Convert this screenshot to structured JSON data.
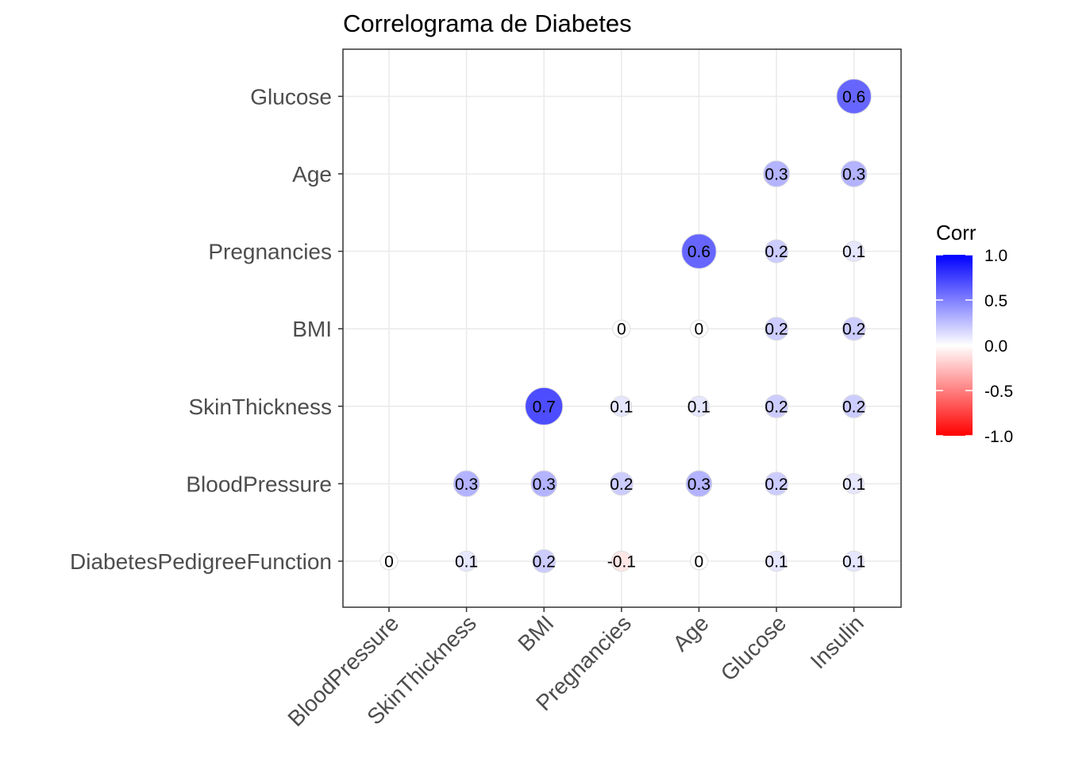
{
  "chart_data": {
    "type": "heatmap",
    "title": "Correlograma de Diabetes",
    "x_categories": [
      "BloodPressure",
      "SkinThickness",
      "BMI",
      "Pregnancies",
      "Age",
      "Glucose",
      "Insulin"
    ],
    "y_categories": [
      "DiabetesPedigreeFunction",
      "BloodPressure",
      "SkinThickness",
      "BMI",
      "Pregnancies",
      "Age",
      "Glucose"
    ],
    "cells": [
      {
        "x": "BloodPressure",
        "y": "DiabetesPedigreeFunction",
        "value": 0,
        "label": "0"
      },
      {
        "x": "SkinThickness",
        "y": "DiabetesPedigreeFunction",
        "value": 0.1,
        "label": "0.1"
      },
      {
        "x": "BMI",
        "y": "DiabetesPedigreeFunction",
        "value": 0.2,
        "label": "0.2"
      },
      {
        "x": "Pregnancies",
        "y": "DiabetesPedigreeFunction",
        "value": -0.1,
        "label": "-0.1"
      },
      {
        "x": "Age",
        "y": "DiabetesPedigreeFunction",
        "value": 0,
        "label": "0"
      },
      {
        "x": "Glucose",
        "y": "DiabetesPedigreeFunction",
        "value": 0.1,
        "label": "0.1"
      },
      {
        "x": "Insulin",
        "y": "DiabetesPedigreeFunction",
        "value": 0.1,
        "label": "0.1"
      },
      {
        "x": "SkinThickness",
        "y": "BloodPressure",
        "value": 0.3,
        "label": "0.3"
      },
      {
        "x": "BMI",
        "y": "BloodPressure",
        "value": 0.3,
        "label": "0.3"
      },
      {
        "x": "Pregnancies",
        "y": "BloodPressure",
        "value": 0.2,
        "label": "0.2"
      },
      {
        "x": "Age",
        "y": "BloodPressure",
        "value": 0.3,
        "label": "0.3"
      },
      {
        "x": "Glucose",
        "y": "BloodPressure",
        "value": 0.2,
        "label": "0.2"
      },
      {
        "x": "Insulin",
        "y": "BloodPressure",
        "value": 0.1,
        "label": "0.1"
      },
      {
        "x": "BMI",
        "y": "SkinThickness",
        "value": 0.7,
        "label": "0.7"
      },
      {
        "x": "Pregnancies",
        "y": "SkinThickness",
        "value": 0.1,
        "label": "0.1"
      },
      {
        "x": "Age",
        "y": "SkinThickness",
        "value": 0.1,
        "label": "0.1"
      },
      {
        "x": "Glucose",
        "y": "SkinThickness",
        "value": 0.2,
        "label": "0.2"
      },
      {
        "x": "Insulin",
        "y": "SkinThickness",
        "value": 0.2,
        "label": "0.2"
      },
      {
        "x": "Pregnancies",
        "y": "BMI",
        "value": 0,
        "label": "0"
      },
      {
        "x": "Age",
        "y": "BMI",
        "value": 0,
        "label": "0"
      },
      {
        "x": "Glucose",
        "y": "BMI",
        "value": 0.2,
        "label": "0.2"
      },
      {
        "x": "Insulin",
        "y": "BMI",
        "value": 0.2,
        "label": "0.2"
      },
      {
        "x": "Age",
        "y": "Pregnancies",
        "value": 0.6,
        "label": "0.6"
      },
      {
        "x": "Glucose",
        "y": "Pregnancies",
        "value": 0.2,
        "label": "0.2"
      },
      {
        "x": "Insulin",
        "y": "Pregnancies",
        "value": 0.1,
        "label": "0.1"
      },
      {
        "x": "Glucose",
        "y": "Age",
        "value": 0.3,
        "label": "0.3"
      },
      {
        "x": "Insulin",
        "y": "Age",
        "value": 0.3,
        "label": "0.3"
      },
      {
        "x": "Insulin",
        "y": "Glucose",
        "value": 0.6,
        "label": "0.6"
      }
    ],
    "legend": {
      "title": "Corr",
      "ticks": [
        "1.0",
        "0.5",
        "0.0",
        "-0.5",
        "-1.0"
      ],
      "tick_values": [
        1.0,
        0.5,
        0.0,
        -0.5,
        -1.0
      ],
      "range": [
        -1.0,
        1.0
      ],
      "placement": "right"
    },
    "colors": {
      "high": "#0000ff",
      "mid": "#ffffff",
      "low": "#ff0000"
    },
    "grid": true
  }
}
